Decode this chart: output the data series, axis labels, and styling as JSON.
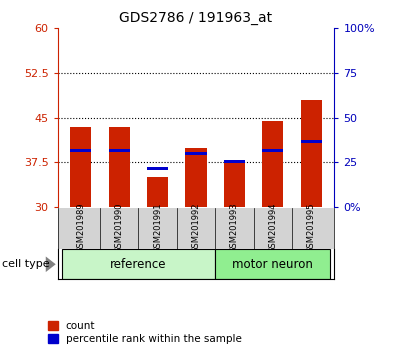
{
  "title": "GDS2786 / 191963_at",
  "samples": [
    "GSM201989",
    "GSM201990",
    "GSM201991",
    "GSM201992",
    "GSM201993",
    "GSM201994",
    "GSM201995"
  ],
  "count_values": [
    43.5,
    43.5,
    35.0,
    40.0,
    37.8,
    44.5,
    48.0
  ],
  "percentile_values": [
    39.5,
    39.5,
    36.5,
    39.0,
    37.7,
    39.5,
    41.0
  ],
  "bar_bottom": 30,
  "ylim_left": [
    30,
    60
  ],
  "ylim_right": [
    0,
    100
  ],
  "yticks_left": [
    30,
    37.5,
    45,
    52.5,
    60
  ],
  "ytick_labels_left": [
    "30",
    "37.5",
    "45",
    "52.5",
    "60"
  ],
  "yticks_right": [
    0,
    25,
    50,
    75,
    100
  ],
  "ytick_labels_right": [
    "0%",
    "25",
    "50",
    "75",
    "100%"
  ],
  "dotted_lines": [
    37.5,
    45,
    52.5
  ],
  "bar_color": "#CC2200",
  "percentile_color": "#0000CC",
  "bg_labels": "#d3d3d3",
  "ref_color": "#c8f5c8",
  "mn_color": "#90EE90",
  "legend_count": "count",
  "legend_percentile": "percentile rank within the sample",
  "xlabel_color": "#CC2200",
  "ylabel_right_color": "#0000BB"
}
